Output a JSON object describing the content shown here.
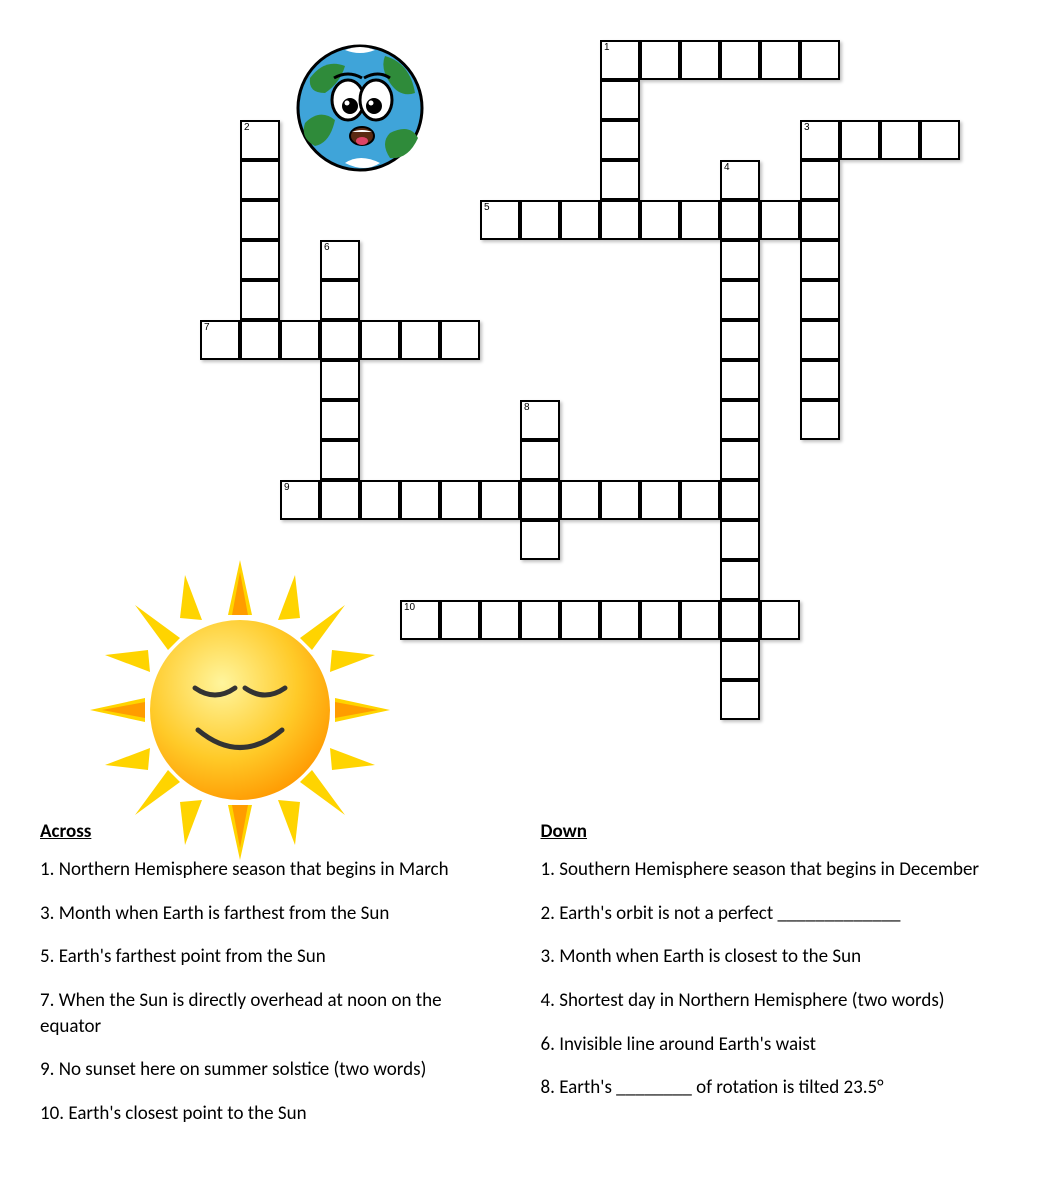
{
  "crossword": {
    "cell_size": 40,
    "cells": [
      {
        "r": 0,
        "c": 11,
        "n": "1"
      },
      {
        "r": 0,
        "c": 12
      },
      {
        "r": 0,
        "c": 13
      },
      {
        "r": 0,
        "c": 14
      },
      {
        "r": 0,
        "c": 15
      },
      {
        "r": 0,
        "c": 16
      },
      {
        "r": 1,
        "c": 11
      },
      {
        "r": 2,
        "c": 2,
        "n": "2"
      },
      {
        "r": 2,
        "c": 11
      },
      {
        "r": 2,
        "c": 16,
        "n": "3"
      },
      {
        "r": 2,
        "c": 17
      },
      {
        "r": 2,
        "c": 18
      },
      {
        "r": 2,
        "c": 19
      },
      {
        "r": 3,
        "c": 2
      },
      {
        "r": 3,
        "c": 11
      },
      {
        "r": 3,
        "c": 14,
        "n": "4"
      },
      {
        "r": 3,
        "c": 16
      },
      {
        "r": 4,
        "c": 2
      },
      {
        "r": 4,
        "c": 8,
        "n": "5"
      },
      {
        "r": 4,
        "c": 9
      },
      {
        "r": 4,
        "c": 10
      },
      {
        "r": 4,
        "c": 11
      },
      {
        "r": 4,
        "c": 12
      },
      {
        "r": 4,
        "c": 13
      },
      {
        "r": 4,
        "c": 14
      },
      {
        "r": 4,
        "c": 15
      },
      {
        "r": 4,
        "c": 16
      },
      {
        "r": 5,
        "c": 2
      },
      {
        "r": 5,
        "c": 4,
        "n": "6"
      },
      {
        "r": 5,
        "c": 14
      },
      {
        "r": 5,
        "c": 16
      },
      {
        "r": 6,
        "c": 2
      },
      {
        "r": 6,
        "c": 4
      },
      {
        "r": 6,
        "c": 14
      },
      {
        "r": 6,
        "c": 16
      },
      {
        "r": 7,
        "c": 1,
        "n": "7"
      },
      {
        "r": 7,
        "c": 2
      },
      {
        "r": 7,
        "c": 3
      },
      {
        "r": 7,
        "c": 4
      },
      {
        "r": 7,
        "c": 5
      },
      {
        "r": 7,
        "c": 6
      },
      {
        "r": 7,
        "c": 7
      },
      {
        "r": 7,
        "c": 14
      },
      {
        "r": 7,
        "c": 16
      },
      {
        "r": 8,
        "c": 4
      },
      {
        "r": 8,
        "c": 14
      },
      {
        "r": 8,
        "c": 16
      },
      {
        "r": 9,
        "c": 4
      },
      {
        "r": 9,
        "c": 9,
        "n": "8"
      },
      {
        "r": 9,
        "c": 14
      },
      {
        "r": 9,
        "c": 16
      },
      {
        "r": 10,
        "c": 4
      },
      {
        "r": 10,
        "c": 9
      },
      {
        "r": 10,
        "c": 14
      },
      {
        "r": 11,
        "c": 3,
        "n": "9"
      },
      {
        "r": 11,
        "c": 4
      },
      {
        "r": 11,
        "c": 5
      },
      {
        "r": 11,
        "c": 6
      },
      {
        "r": 11,
        "c": 7
      },
      {
        "r": 11,
        "c": 8
      },
      {
        "r": 11,
        "c": 9
      },
      {
        "r": 11,
        "c": 10
      },
      {
        "r": 11,
        "c": 11
      },
      {
        "r": 11,
        "c": 12
      },
      {
        "r": 11,
        "c": 13
      },
      {
        "r": 11,
        "c": 14
      },
      {
        "r": 12,
        "c": 9
      },
      {
        "r": 12,
        "c": 14
      },
      {
        "r": 13,
        "c": 14
      },
      {
        "r": 14,
        "c": 6,
        "n": "10"
      },
      {
        "r": 14,
        "c": 7
      },
      {
        "r": 14,
        "c": 8
      },
      {
        "r": 14,
        "c": 9
      },
      {
        "r": 14,
        "c": 10
      },
      {
        "r": 14,
        "c": 11
      },
      {
        "r": 14,
        "c": 12
      },
      {
        "r": 14,
        "c": 13
      },
      {
        "r": 14,
        "c": 14
      },
      {
        "r": 14,
        "c": 15
      },
      {
        "r": 15,
        "c": 14
      },
      {
        "r": 16,
        "c": 14
      }
    ]
  },
  "icons": {
    "earth": {
      "body_fill": "#3fa4d9",
      "land_fill": "#2f8b3a",
      "eye_white": "#ffffff",
      "eye_pupil": "#000000",
      "outline": "#000000"
    },
    "sun": {
      "ray_outer": "#ffd400",
      "ray_inner": "#ff9c00",
      "body_top": "#fff176",
      "body_bottom": "#ff9800",
      "face_color": "#333333"
    }
  },
  "clues": {
    "across_heading": "Across",
    "down_heading": "Down",
    "across": [
      "1. Northern Hemisphere season that begins in March",
      "3. Month when Earth is farthest from the Sun",
      "5. Earth's farthest point from the Sun",
      "7. When the Sun is directly overhead at noon on the equator",
      "9. No sunset here on summer solstice (two words)",
      "10. Earth's closest point to the Sun"
    ],
    "down": [
      "1. Southern Hemisphere season that begins in December",
      "2. Earth's orbit is not a perfect _____________",
      "3. Month when Earth is closest to the Sun",
      "4. Shortest day in Northern Hemisphere (two words)",
      "6. Invisible line around Earth's waist",
      "8. Earth's ________ of rotation is tilted 23.5°"
    ]
  }
}
